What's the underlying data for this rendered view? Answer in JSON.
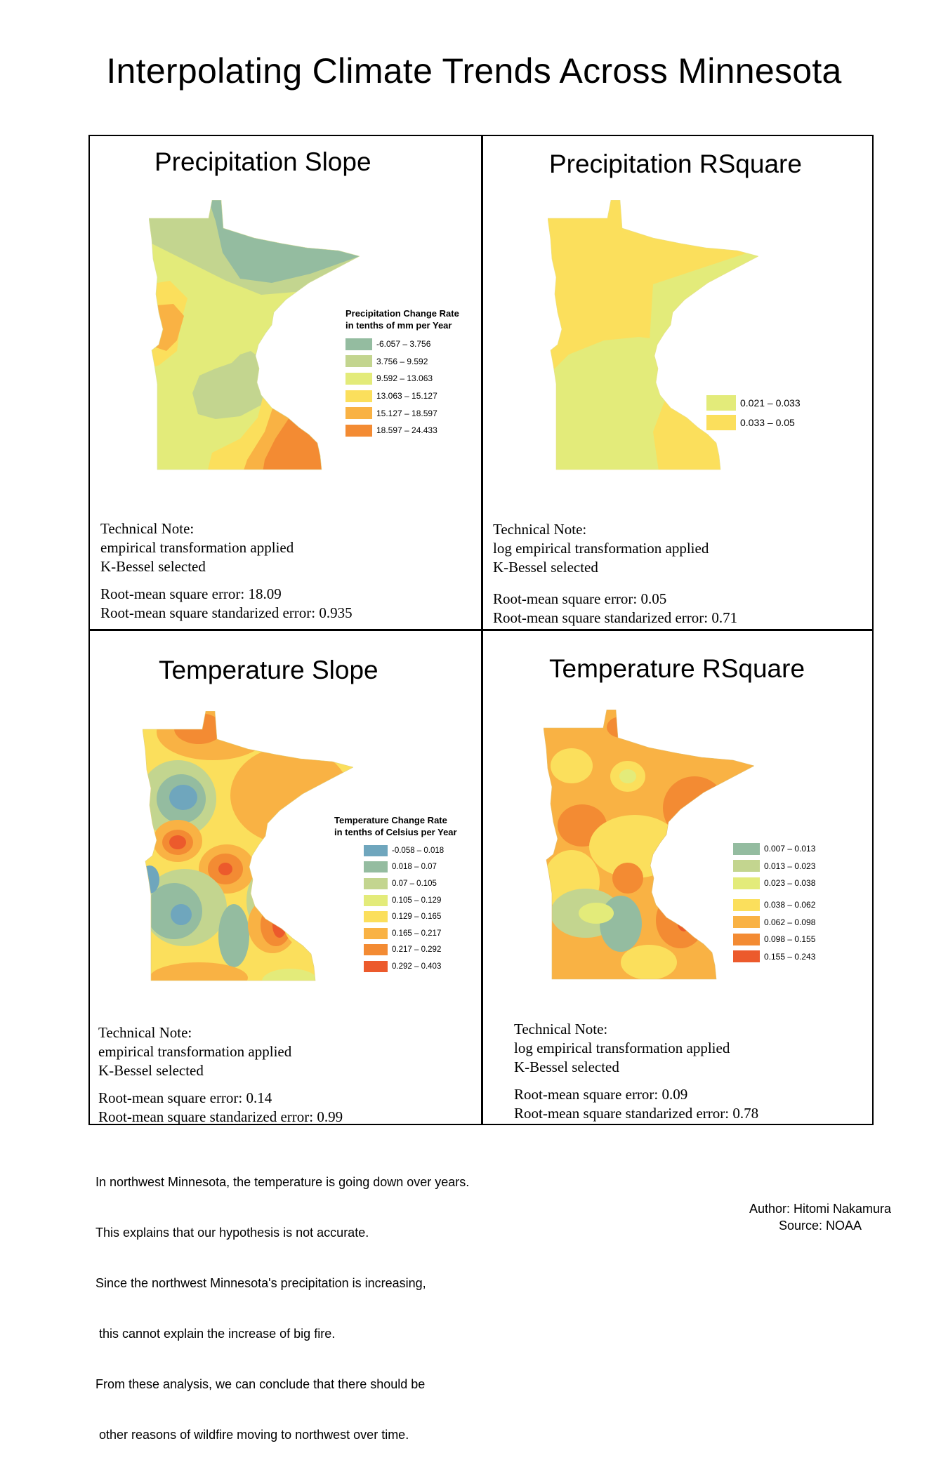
{
  "title": "Interpolating Climate Trends Across Minnesota",
  "panels": {
    "precip_slope": {
      "title": "Precipitation Slope",
      "legend_title": [
        "Precipitation Change Rate",
        "in tenths of mm per Year"
      ],
      "legend": [
        {
          "label": "-6.057 – 3.756",
          "color": "#94bca0"
        },
        {
          "label": "3.756 – 9.592",
          "color": "#c3d58f"
        },
        {
          "label": "9.592 – 13.063",
          "color": "#e3eb7a"
        },
        {
          "label": "13.063 – 15.127",
          "color": "#fbdf5c"
        },
        {
          "label": "15.127 – 18.597",
          "color": "#f9b244"
        },
        {
          "label": "18.597 – 24.433",
          "color": "#f38b33"
        }
      ],
      "note": {
        "heading": "Technical Note:",
        "transform": "empirical transformation applied",
        "kernel": "K-Bessel selected",
        "rmse": "Root-mean square error: 18.09",
        "rmsse": "Root-mean square standarized error: 0.935"
      }
    },
    "precip_rsq": {
      "title": "Precipitation RSquare",
      "legend": [
        {
          "label": "0.021 – 0.033",
          "color": "#e3eb7a"
        },
        {
          "label": "0.033 – 0.05",
          "color": "#fbdf5c"
        }
      ],
      "note": {
        "heading": "Technical Note:",
        "transform": "log empirical transformation applied",
        "kernel": "K-Bessel selected",
        "rmse": "Root-mean square error: 0.05",
        "rmsse": "Root-mean square standarized error: 0.71"
      }
    },
    "temp_slope": {
      "title": "Temperature Slope",
      "legend_title": [
        "Temperature Change Rate",
        "in tenths of Celsius per Year"
      ],
      "legend": [
        {
          "label": "-0.058 – 0.018",
          "color": "#6fa6bd"
        },
        {
          "label": "0.018 – 0.07",
          "color": "#94bca0"
        },
        {
          "label": "0.07 – 0.105",
          "color": "#c3d58f"
        },
        {
          "label": "0.105 – 0.129",
          "color": "#e3eb7a"
        },
        {
          "label": "0.129 – 0.165",
          "color": "#fbdf5c"
        },
        {
          "label": "0.165 – 0.217",
          "color": "#f9b244"
        },
        {
          "label": "0.217 – 0.292",
          "color": "#f38b33"
        },
        {
          "label": "0.292 – 0.403",
          "color": "#ec5a2c"
        }
      ],
      "note": {
        "heading": "Technical Note:",
        "transform": "empirical transformation applied",
        "kernel": "K-Bessel selected",
        "rmse": "Root-mean square error: 0.14",
        "rmsse": "Root-mean square standarized error: 0.99"
      }
    },
    "temp_rsq": {
      "title": "Temperature RSquare",
      "legend": [
        {
          "label": "0.007 – 0.013",
          "color": "#94bca0"
        },
        {
          "label": "0.013 – 0.023",
          "color": "#c3d58f"
        },
        {
          "label": "0.023 – 0.038",
          "color": "#e3eb7a"
        },
        {
          "label": "0.038 – 0.062",
          "color": "#fbdf5c"
        },
        {
          "label": "0.062 – 0.098",
          "color": "#f9b244"
        },
        {
          "label": "0.098 – 0.155",
          "color": "#f38b33"
        },
        {
          "label": "0.155 – 0.243",
          "color": "#ec5a2c"
        }
      ],
      "note": {
        "heading": "Technical Note:",
        "transform": "log empirical transformation applied",
        "kernel": "K-Bessel selected",
        "rmse": "Root-mean square error: 0.09",
        "rmsse": "Root-mean square standarized error: 0.78"
      }
    }
  },
  "conclusion": [
    "In northwest Minnesota, the temperature is going down over years.",
    "This explains that our hypothesis is not accurate.",
    "Since the northwest Minnesota's precipitation is increasing,",
    " this cannot explain the increase of big fire.",
    "From these analysis, we can conclude that there should be",
    " other reasons of wildfire moving to northwest over time."
  ],
  "credits": {
    "author": "Author: Hitomi Nakamura",
    "source": "Source: NOAA"
  }
}
